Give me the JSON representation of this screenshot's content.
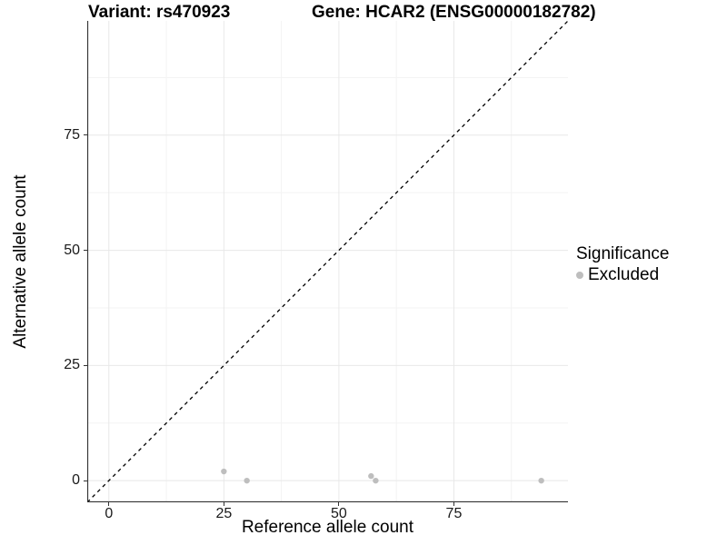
{
  "chart_data": {
    "type": "scatter",
    "title_left": "Variant: rs470923",
    "title_right": "Gene: HCAR2 (ENSG00000182782)",
    "xlabel": "Reference allele count",
    "ylabel": "Alternative allele count",
    "xlim": [
      -4.7,
      99.8
    ],
    "ylim": [
      -4.7,
      99.8
    ],
    "x_breaks": [
      0,
      25,
      50,
      75
    ],
    "y_breaks": [
      0,
      25,
      50,
      75
    ],
    "x_minor_breaks": [
      12.5,
      37.5,
      62.5,
      87.5
    ],
    "y_minor_breaks": [
      12.5,
      37.5,
      62.5,
      87.5
    ],
    "grid": true,
    "legend_position": "right",
    "legend_title": "Significance",
    "series": [
      {
        "name": "Excluded",
        "color": "#bebebe",
        "marker": "circle",
        "points": [
          [
            25,
            2
          ],
          [
            30,
            0
          ],
          [
            57,
            1
          ],
          [
            58,
            0
          ],
          [
            94,
            0
          ]
        ]
      }
    ],
    "reference_line": {
      "equation": "y = x",
      "style": "dashed",
      "color": "#000000"
    }
  },
  "colors": {
    "background": "#ffffff",
    "grid_major": "#e8e8e8",
    "grid_minor": "#f3f3f3",
    "axis_line": "#333333",
    "tick_text": "#1a1a1a",
    "point": "#bebebe"
  }
}
